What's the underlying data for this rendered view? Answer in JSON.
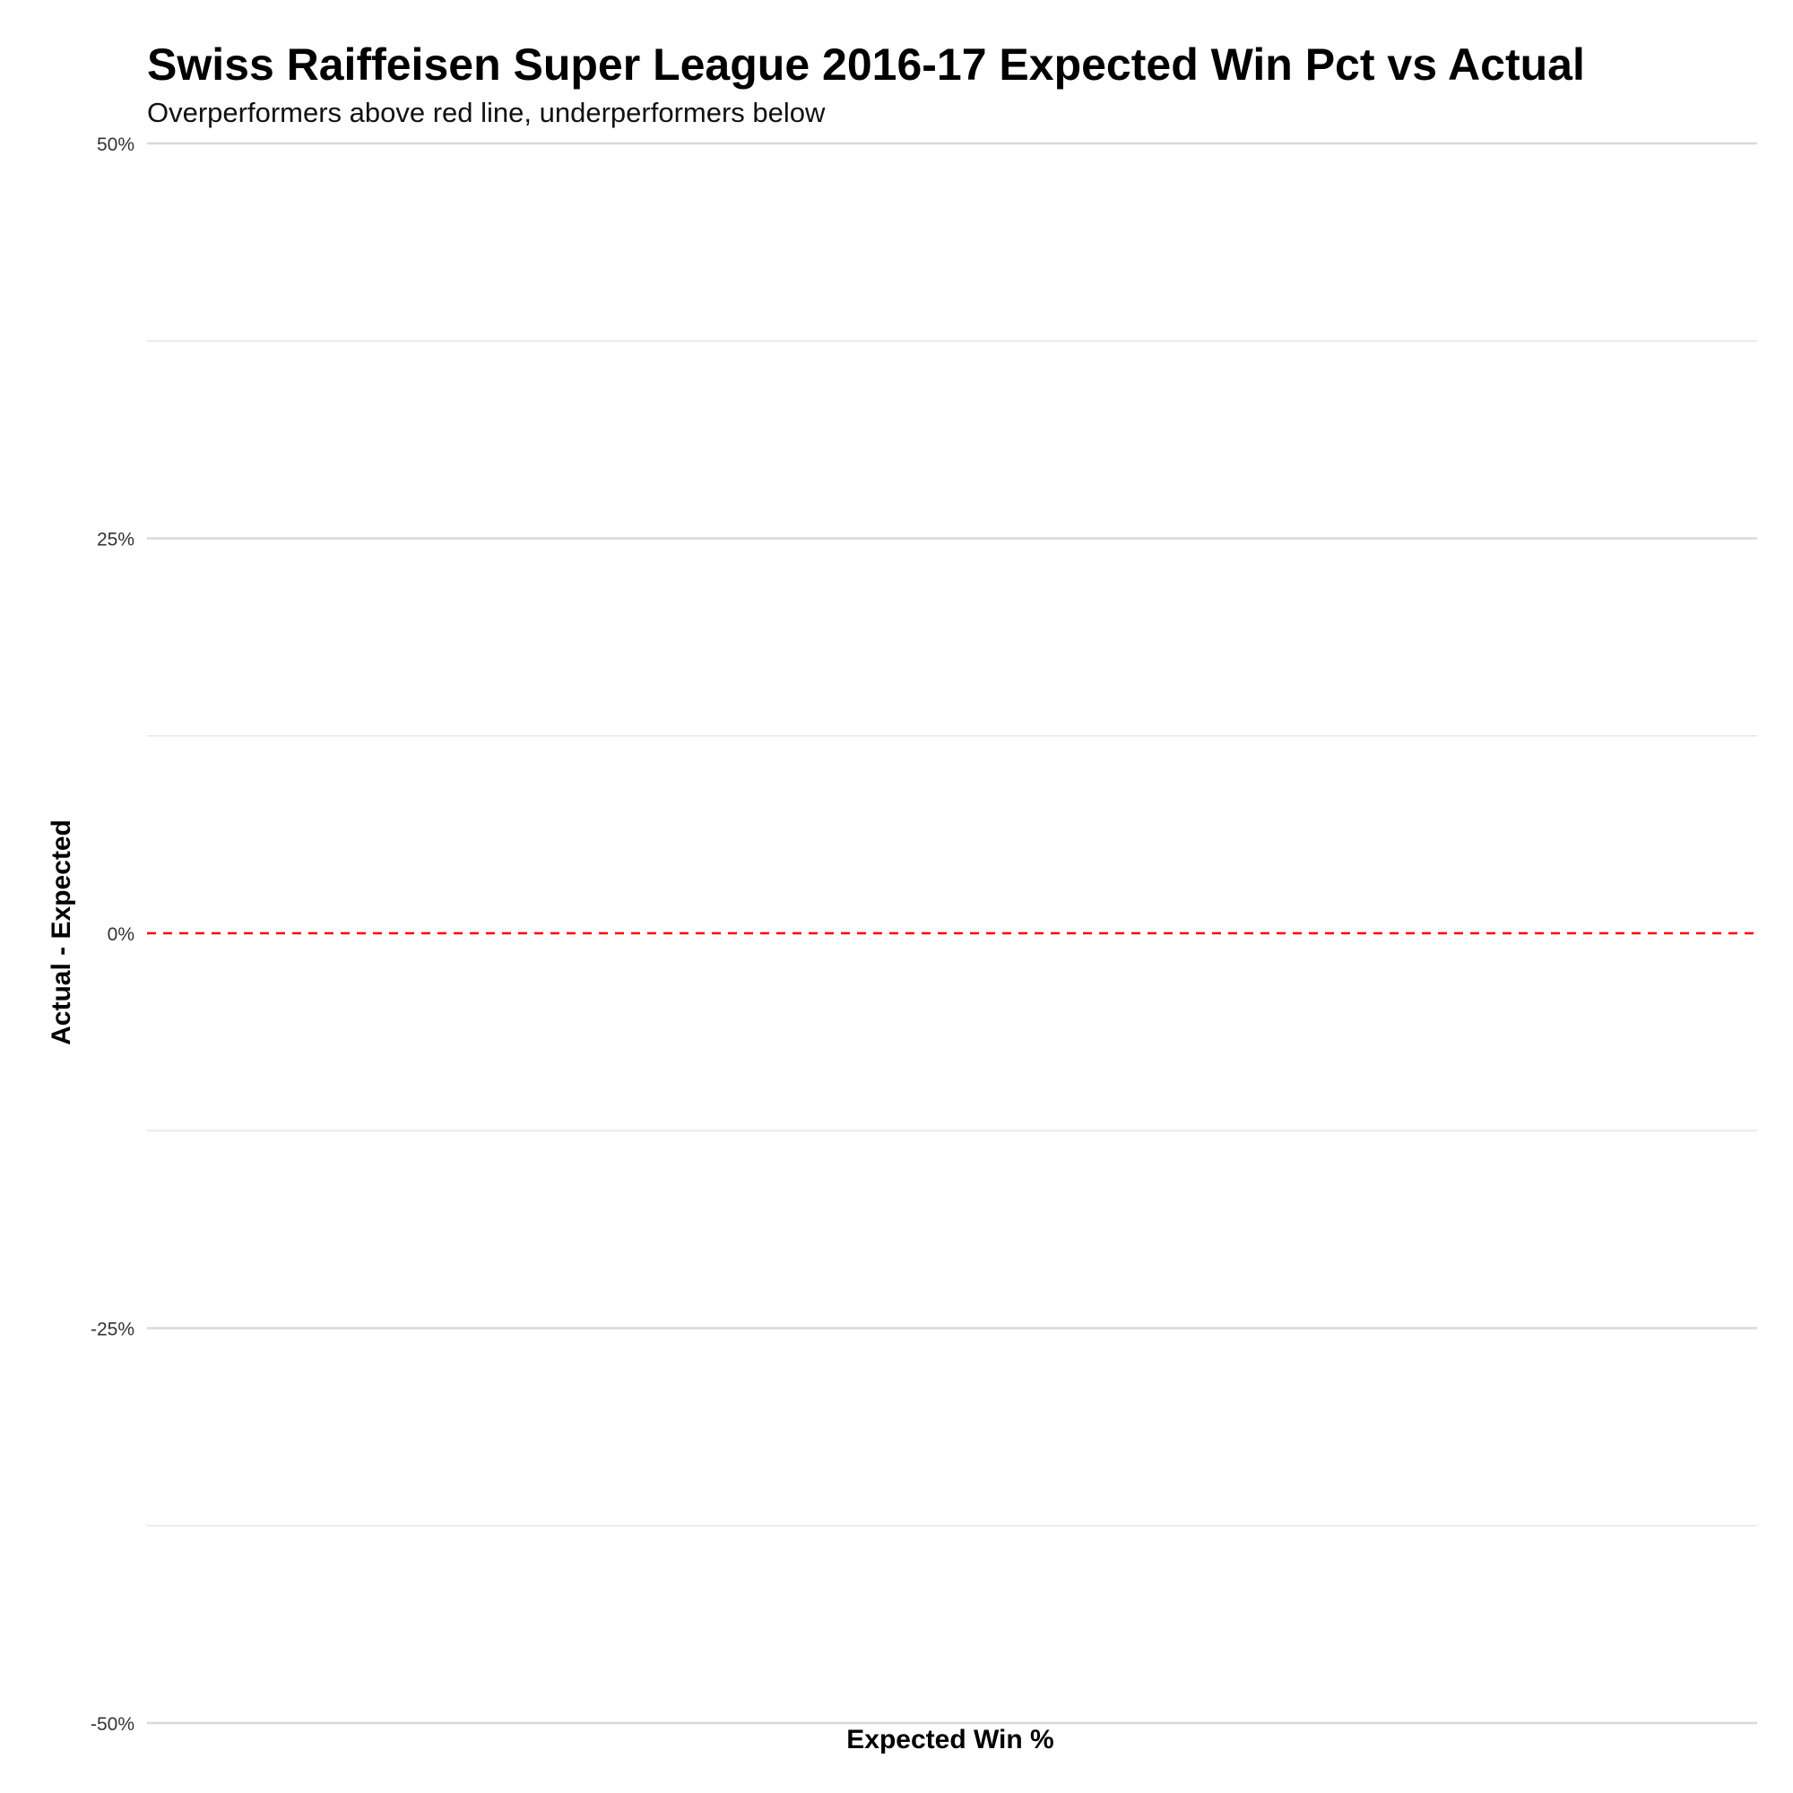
{
  "chart_data": {
    "type": "scatter",
    "title": "Swiss Raiffeisen Super League 2016-17 Expected Win Pct vs Actual",
    "subtitle": "Overperformers above red line, underperformers below",
    "xlabel": "Expected Win %",
    "ylabel": "Actual - Expected",
    "ylim": [
      -0.5,
      0.5
    ],
    "y_ticks": [
      {
        "value": 0.5,
        "label": "50%"
      },
      {
        "value": 0.25,
        "label": "25%"
      },
      {
        "value": 0,
        "label": "0%"
      },
      {
        "value": -0.25,
        "label": "-25%"
      },
      {
        "value": -0.5,
        "label": "-50%"
      }
    ],
    "y_minor_gridlines": [
      0.375,
      0.125,
      -0.125,
      -0.375
    ],
    "grid": true,
    "reference_line": {
      "y": 0,
      "style": "dashed",
      "color": "#ff0000"
    },
    "series": [],
    "colors": {
      "reference_line": "#ff0000",
      "major_grid": "#d9d9d9",
      "minor_grid": "#e6e6e6",
      "tick_label": "#333333",
      "text": "#000000"
    }
  }
}
